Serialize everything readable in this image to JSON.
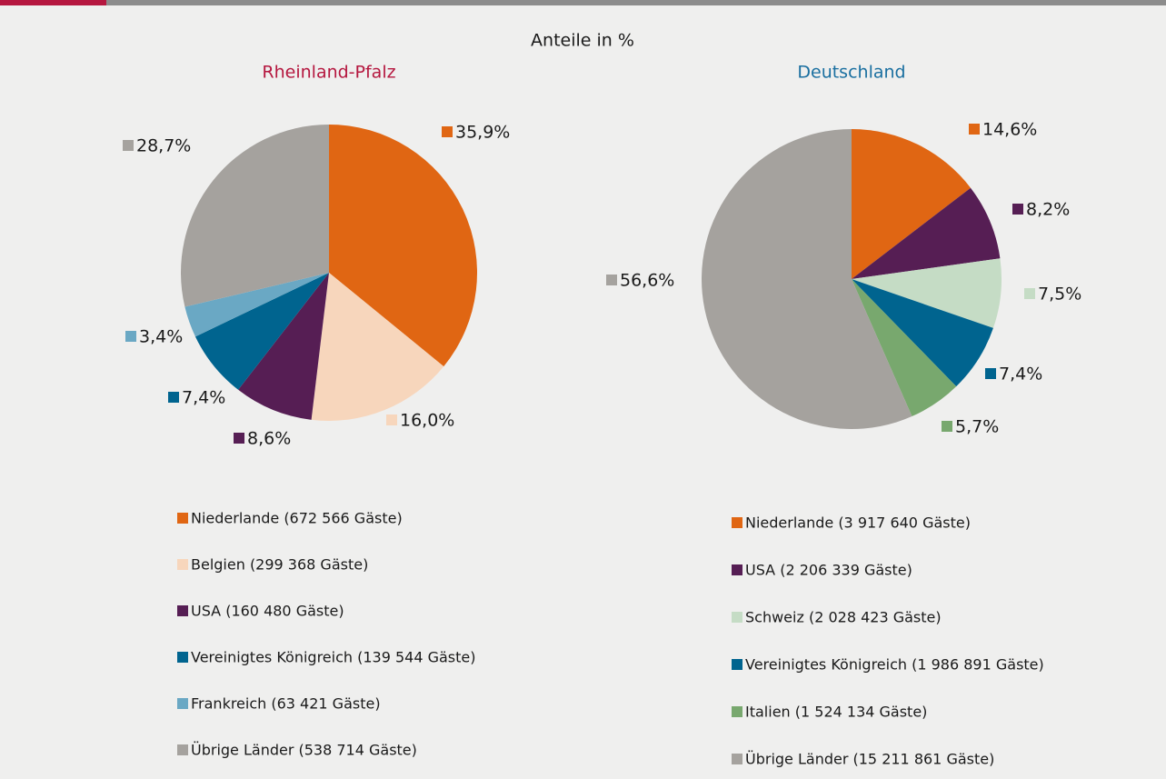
{
  "title": "Anteile in %",
  "chart_data": [
    {
      "type": "pie",
      "title": "Rheinland-Pfalz",
      "title_color": "#b5173f",
      "categories": [
        "Niederlande (672 566 Gäste)",
        "Belgien (299 368 Gäste)",
        "USA (160 480 Gäste)",
        "Vereinigtes Königreich (139 544 Gäste)",
        "Frankreich (63 421 Gäste)",
        "Übrige Länder (538 714 Gäste)"
      ],
      "values": [
        35.9,
        16.0,
        8.6,
        7.4,
        3.4,
        28.7
      ],
      "value_labels": [
        "35,9%",
        "16,0%",
        "8,6%",
        "7,4%",
        "3,4%",
        "28,7%"
      ],
      "colors": [
        "#e06613",
        "#f7d6bc",
        "#561e54",
        "#00648f",
        "#6aa8c4",
        "#a5a29e"
      ]
    },
    {
      "type": "pie",
      "title": "Deutschland",
      "title_color": "#1a6fa0",
      "categories": [
        "Niederlande (3 917 640 Gäste)",
        "USA (2 206 339 Gäste)",
        "Schweiz (2 028 423 Gäste)",
        "Vereinigtes Königreich (1 986 891 Gäste)",
        "Italien (1 524 134 Gäste)",
        "Übrige Länder (15 211 861 Gäste)"
      ],
      "values": [
        14.6,
        8.2,
        7.5,
        7.4,
        5.7,
        56.6
      ],
      "value_labels": [
        "14,6%",
        "8,2%",
        "7,5%",
        "7,4%",
        "5,7%",
        "56,6%"
      ],
      "colors": [
        "#e06613",
        "#561e54",
        "#c5dcc5",
        "#00648f",
        "#78a86e",
        "#a5a29e"
      ]
    }
  ]
}
